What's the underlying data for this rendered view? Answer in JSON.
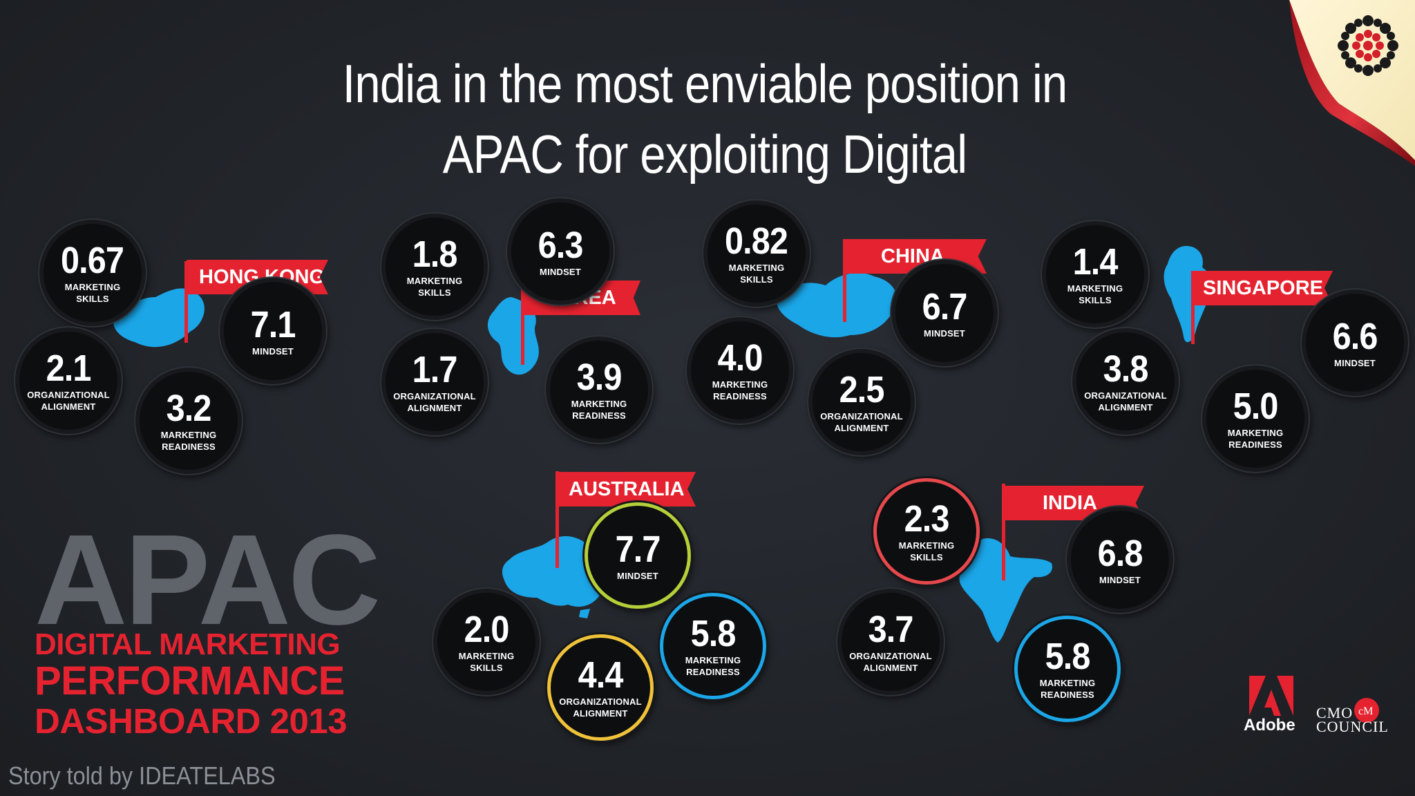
{
  "title": {
    "line1": "India in the most enviable position in",
    "line2": "APAC for exploiting Digital"
  },
  "colors": {
    "flag_red": "#e52330",
    "map_blue": "#1ba6e8",
    "ring_green": "#b5cf3a",
    "ring_yellow": "#f0c23a",
    "ring_blue": "#1ba6e8",
    "ring_red": "#e6484c"
  },
  "countries": {
    "hongkong": {
      "name": "HONG KONG",
      "marketing_skills": "0.67",
      "mindset": "7.1",
      "organizational_alignment": "2.1",
      "marketing_readiness": "3.2"
    },
    "korea": {
      "name": "KOREA",
      "marketing_skills": "1.8",
      "mindset": "6.3",
      "organizational_alignment": "1.7",
      "marketing_readiness": "3.9"
    },
    "china": {
      "name": "CHINA",
      "marketing_skills": "0.82",
      "mindset": "6.7",
      "organizational_alignment": "2.5",
      "marketing_readiness": "4.0"
    },
    "singapore": {
      "name": "SINGAPORE",
      "marketing_skills": "1.4",
      "mindset": "6.6",
      "organizational_alignment": "3.8",
      "marketing_readiness": "5.0"
    },
    "australia": {
      "name": "AUSTRALIA",
      "marketing_skills": "2.0",
      "mindset": "7.7",
      "organizational_alignment": "4.4",
      "marketing_readiness": "5.8"
    },
    "india": {
      "name": "INDIA",
      "marketing_skills": "2.3",
      "mindset": "6.8",
      "organizational_alignment": "3.7",
      "marketing_readiness": "5.8"
    }
  },
  "labels": {
    "marketing": "MARKETING",
    "skills": "SKILLS",
    "mindset": "MINDSET",
    "organizational": "ORGANIZATIONAL",
    "alignment": "ALIGNMENT",
    "readiness": "READINESS"
  },
  "branding": {
    "apac": "APAC",
    "line1": "DIGITAL MARKETING",
    "line2": "PERFORMANCE",
    "line3": "DASHBOARD 2013",
    "story": "Story told by IDEATELABS",
    "adobe": "Adobe",
    "cmo_line1": "CMO",
    "cmo_line2": "COUNCIL"
  },
  "icons": {
    "corner_logo": "dotted-flower-icon",
    "adobe_logo": "adobe-logo-icon",
    "cmo_logo": "cmo-council-logo-icon"
  }
}
